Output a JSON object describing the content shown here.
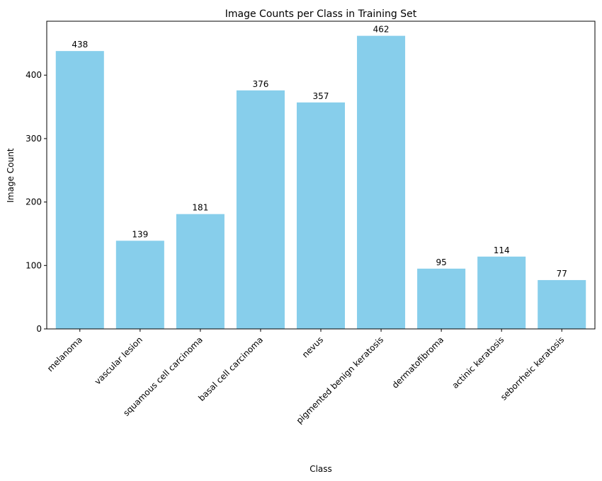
{
  "chart_data": {
    "type": "bar",
    "title": "Image Counts per Class in Training Set",
    "xlabel": "Class",
    "ylabel": "Image Count",
    "categories": [
      "melanoma",
      "vascular lesion",
      "squamous cell carcinoma",
      "basal cell carcinoma",
      "nevus",
      "pigmented benign keratosis",
      "dermatofibroma",
      "actinic keratosis",
      "seborrheic keratosis"
    ],
    "values": [
      438,
      139,
      181,
      376,
      357,
      462,
      95,
      114,
      77
    ],
    "ylim": [
      0,
      485
    ],
    "yticks": [
      0,
      100,
      200,
      300,
      400
    ],
    "bar_color": "#87CEEB",
    "grid": false
  }
}
